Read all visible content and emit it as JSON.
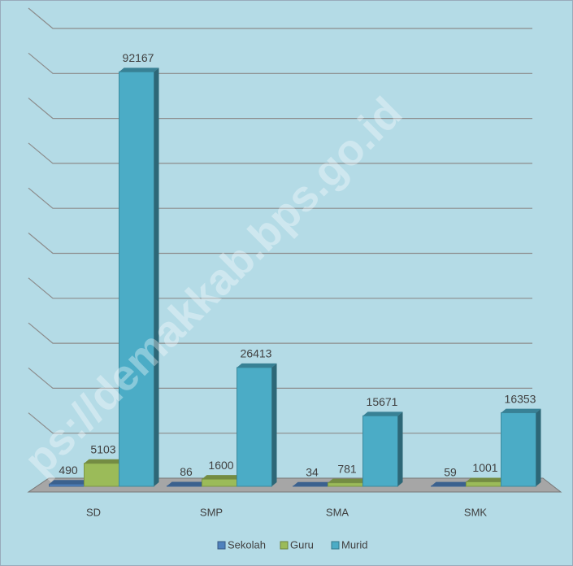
{
  "chart_data": {
    "type": "bar3d",
    "categories": [
      "SD",
      "SMP",
      "SMA",
      "SMK"
    ],
    "series": [
      {
        "name": "Sekolah",
        "color": "#4f81bd",
        "values": [
          490,
          86,
          34,
          59
        ]
      },
      {
        "name": "Guru",
        "color": "#9bbb59",
        "values": [
          5103,
          1600,
          781,
          1001
        ]
      },
      {
        "name": "Murid",
        "color": "#4bacc6",
        "values": [
          92167,
          26413,
          15671,
          16353
        ]
      }
    ],
    "ylim": [
      0,
      100000
    ],
    "yticks": [
      0,
      10000,
      20000,
      30000,
      40000,
      50000,
      60000,
      70000,
      80000,
      90000,
      100000
    ],
    "grid": true,
    "legend": "bottom",
    "watermark": "ps://demakkab.bps.go.id"
  }
}
